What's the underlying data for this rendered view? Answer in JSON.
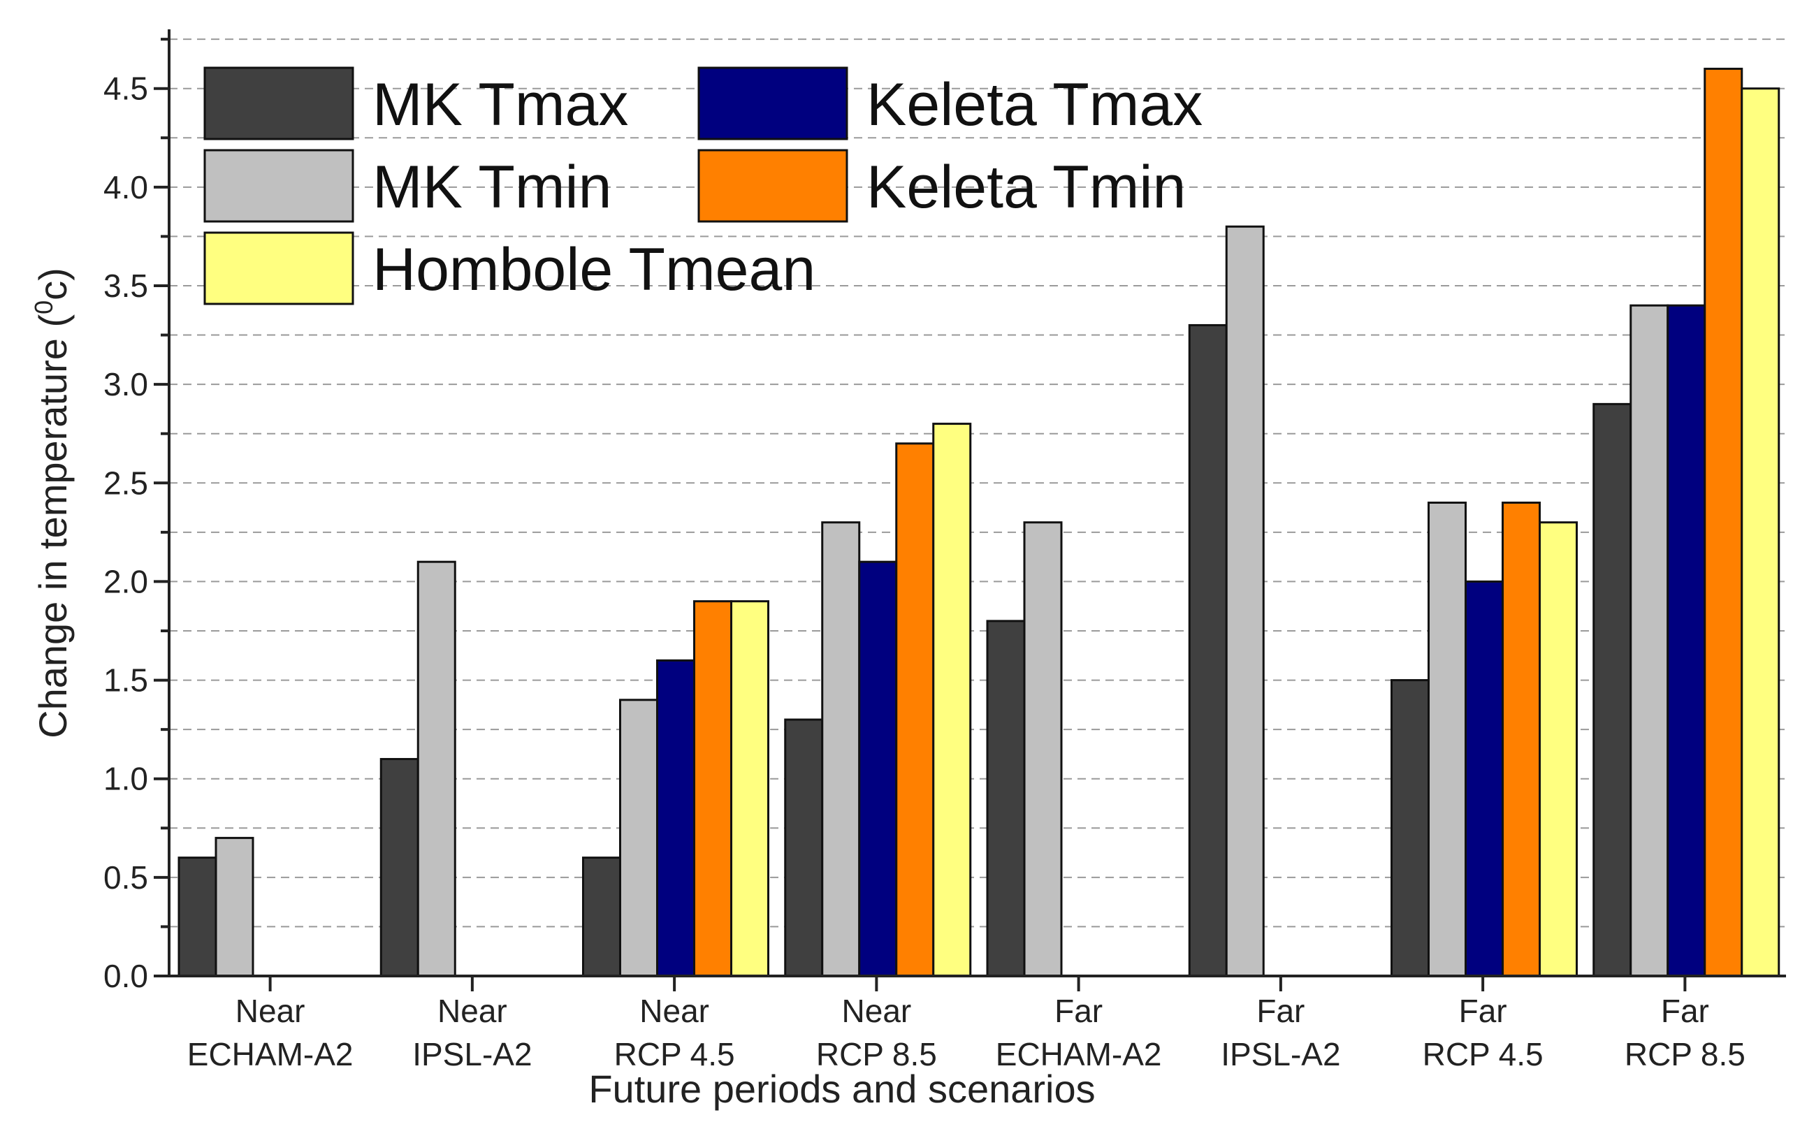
{
  "chart_data": {
    "type": "bar",
    "xlabel": "Future periods and scenarios",
    "ylabel_main": "Change in temperature (",
    "ylabel_sup": "0",
    "ylabel_end": "c)",
    "ylim": [
      0,
      4.8
    ],
    "yticks": [
      "0.0",
      "0.5",
      "1.0",
      "1.5",
      "2.0",
      "2.5",
      "3.0",
      "3.5",
      "4.0",
      "4.5"
    ],
    "grid": true,
    "legend_position": "top-left",
    "categories": [
      [
        "Near",
        "ECHAM-A2"
      ],
      [
        "Near",
        "IPSL-A2"
      ],
      [
        "Near",
        "RCP 4.5"
      ],
      [
        "Near",
        "RCP 8.5"
      ],
      [
        "Far",
        "ECHAM-A2"
      ],
      [
        "Far",
        "IPSL-A2"
      ],
      [
        "Far",
        "RCP 4.5"
      ],
      [
        "Far",
        "RCP 8.5"
      ]
    ],
    "series": [
      {
        "name": "MK Tmax",
        "color": "#404040",
        "values": [
          0.6,
          1.1,
          0.6,
          1.3,
          1.8,
          3.3,
          1.5,
          2.9
        ]
      },
      {
        "name": "MK Tmin",
        "color": "#c0c0c0",
        "values": [
          0.7,
          2.1,
          1.4,
          2.3,
          2.3,
          3.8,
          2.4,
          3.4
        ]
      },
      {
        "name": "Keleta Tmax",
        "color": "#00007f",
        "values": [
          null,
          null,
          1.6,
          2.1,
          null,
          null,
          2.0,
          3.4
        ]
      },
      {
        "name": "Keleta Tmin",
        "color": "#ff8000",
        "values": [
          null,
          null,
          1.9,
          2.7,
          null,
          null,
          2.4,
          4.6
        ]
      },
      {
        "name": "Hombole Tmean",
        "color": "#ffff80",
        "values": [
          null,
          null,
          1.9,
          2.8,
          null,
          null,
          2.3,
          4.5
        ]
      }
    ]
  }
}
